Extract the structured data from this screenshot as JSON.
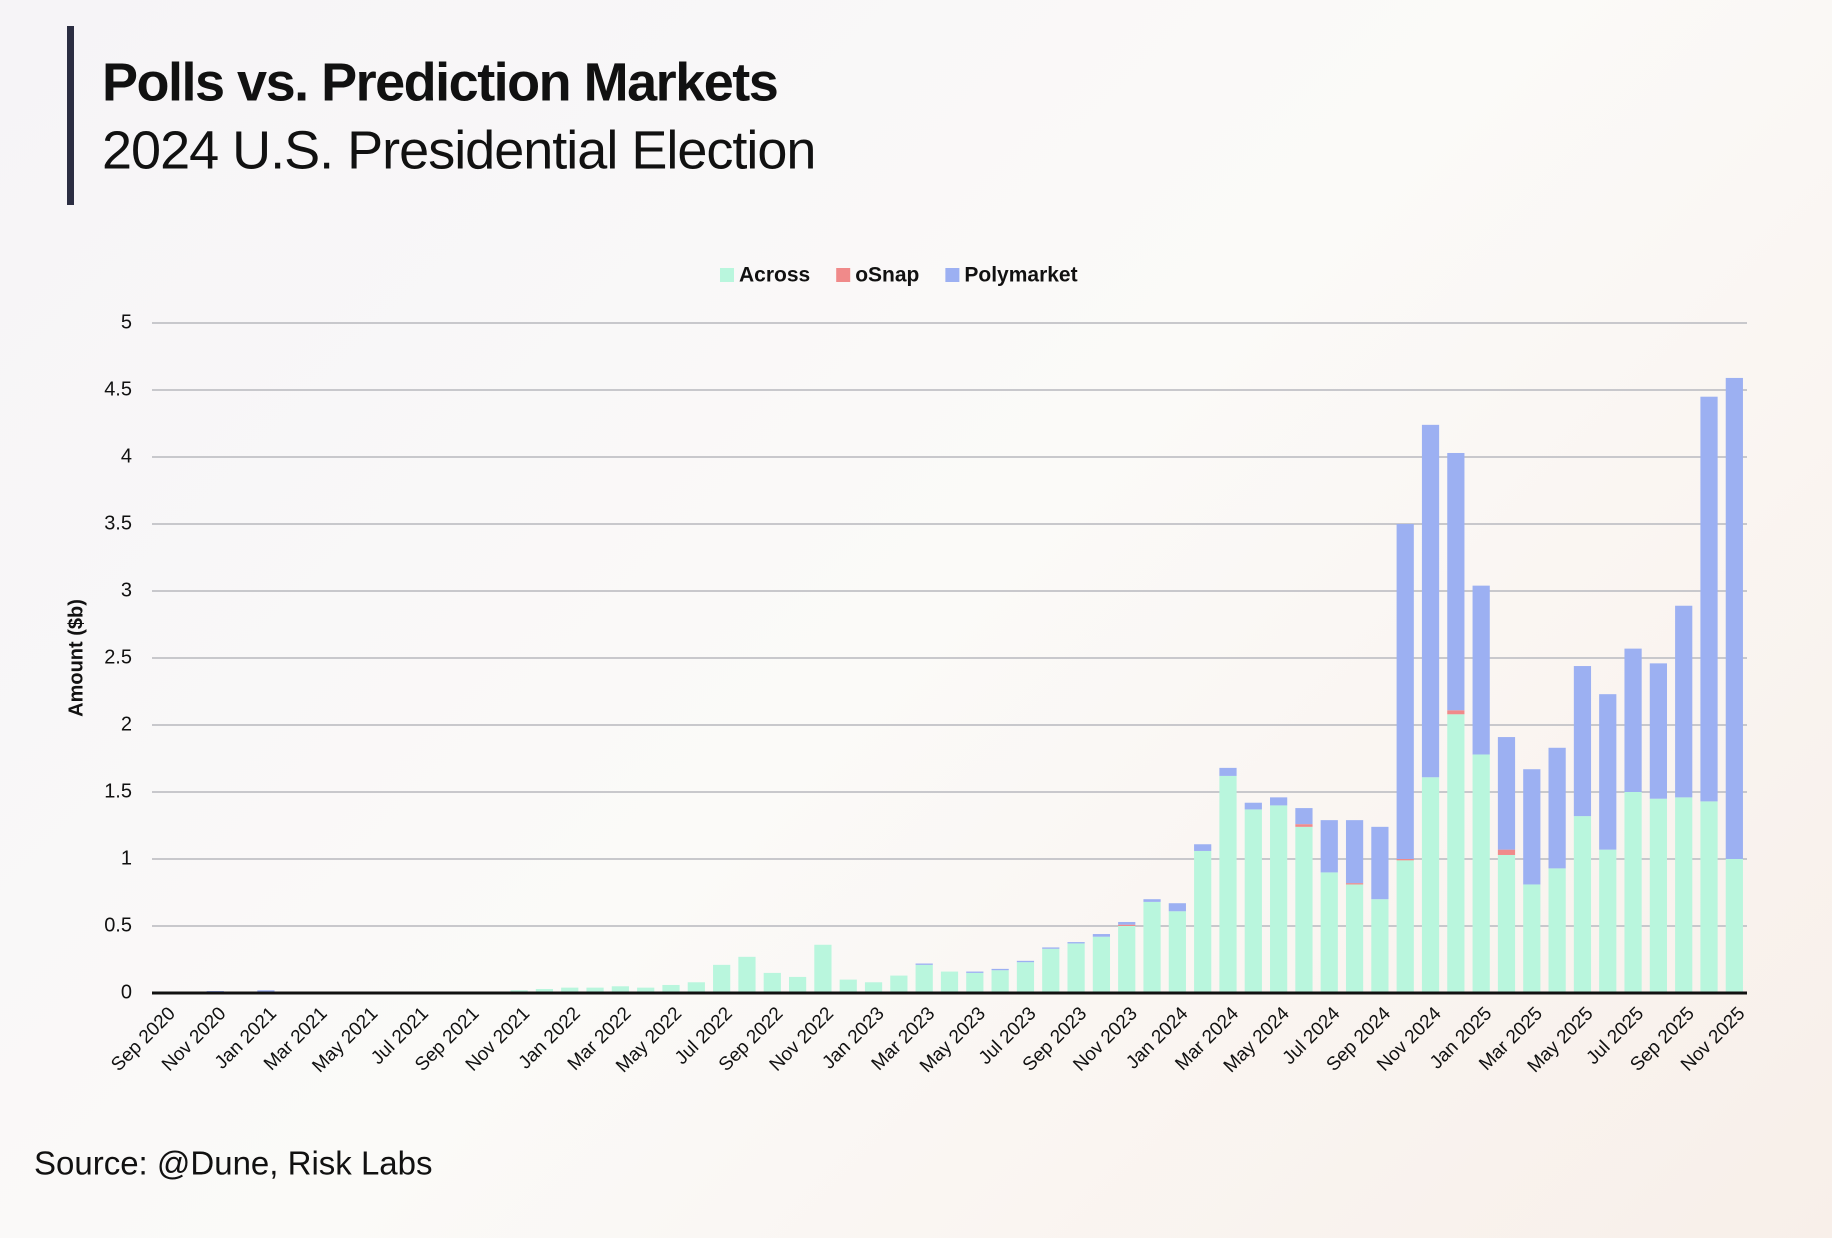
{
  "chart_data": {
    "type": "stacked_bar",
    "title": "Polls vs. Prediction Markets",
    "subtitle": "2024 U.S. Presidential Election",
    "y_label": "Amount ($b)",
    "source": "Source: @Dune, Risk Labs",
    "categories": [
      "Sep 2020",
      null,
      "Nov 2020",
      null,
      "Jan 2021",
      null,
      "Mar 2021",
      null,
      "May 2021",
      null,
      "Jul 2021",
      null,
      "Sep 2021",
      null,
      "Nov 2021",
      null,
      "Jan 2022",
      null,
      "Mar 2022",
      null,
      "May 2022",
      null,
      "Jul 2022",
      null,
      "Sep 2022",
      null,
      "Nov 2022",
      null,
      "Jan 2023",
      null,
      "Mar 2023",
      null,
      "May 2023",
      null,
      "Jul 2023",
      null,
      "Sep 2023",
      null,
      "Nov 2023",
      null,
      "Jan 2024",
      null,
      "Mar 2024",
      null,
      "May 2024",
      null,
      "Jul 2024",
      null,
      "Sep 2024",
      null,
      "Nov 2024",
      null,
      "Jan 2025",
      null,
      "Mar 2025",
      null,
      "May 2025",
      null,
      "Jul 2025",
      null,
      "Sep 2025",
      null,
      "Nov 2025"
    ],
    "series": [
      {
        "name": "Across",
        "color": "#b9f6dd",
        "values": [
          0,
          0,
          0.005,
          0,
          0.01,
          0,
          0,
          0,
          0,
          0,
          0,
          0,
          0,
          0,
          0.02,
          0.03,
          0.04,
          0.04,
          0.05,
          0.04,
          0.06,
          0.08,
          0.21,
          0.27,
          0.15,
          0.12,
          0.36,
          0.1,
          0.08,
          0.13,
          0.21,
          0.16,
          0.15,
          0.17,
          0.23,
          0.33,
          0.37,
          0.42,
          0.5,
          0.68,
          0.61,
          1.06,
          1.62,
          1.37,
          1.4,
          1.24,
          0.9,
          0.81,
          0.7,
          0.99,
          1.61,
          2.08,
          1.78,
          1.03,
          0.81,
          0.93,
          1.32,
          1.07,
          1.5,
          1.45,
          1.46,
          1.43,
          1.0
        ]
      },
      {
        "name": "oSnap",
        "color": "#f08a8a",
        "values": [
          0,
          0,
          0,
          0,
          0,
          0,
          0,
          0,
          0,
          0,
          0,
          0,
          0,
          0,
          0,
          0,
          0,
          0,
          0,
          0,
          0,
          0,
          0,
          0,
          0,
          0,
          0,
          0,
          0,
          0,
          0,
          0,
          0,
          0,
          0,
          0,
          0,
          0,
          0.01,
          0,
          0,
          0,
          0,
          0,
          0,
          0.02,
          0,
          0.01,
          0,
          0.01,
          0,
          0.03,
          0,
          0.04,
          0,
          0,
          0,
          0,
          0,
          0,
          0,
          0,
          0
        ]
      },
      {
        "name": "Polymarket",
        "color": "#9cb0f2",
        "values": [
          0,
          0,
          0.01,
          0,
          0.01,
          0,
          0,
          0,
          0,
          0,
          0,
          0,
          0,
          0,
          0,
          0,
          0,
          0,
          0,
          0,
          0,
          0,
          0,
          0,
          0,
          0,
          0,
          0,
          0,
          0,
          0.01,
          0,
          0.01,
          0.01,
          0.01,
          0.01,
          0.01,
          0.02,
          0.02,
          0.02,
          0.06,
          0.05,
          0.06,
          0.05,
          0.06,
          0.12,
          0.39,
          0.47,
          0.54,
          2.5,
          2.63,
          1.92,
          1.26,
          0.84,
          0.86,
          0.9,
          1.12,
          1.16,
          1.07,
          1.01,
          1.43,
          3.02,
          3.59
        ]
      }
    ],
    "ylim": [
      0,
      5
    ],
    "yticks": [
      0,
      0.5,
      1,
      1.5,
      2,
      2.5,
      3,
      3.5,
      4,
      4.5,
      5
    ],
    "grid": true,
    "legend": "top"
  }
}
